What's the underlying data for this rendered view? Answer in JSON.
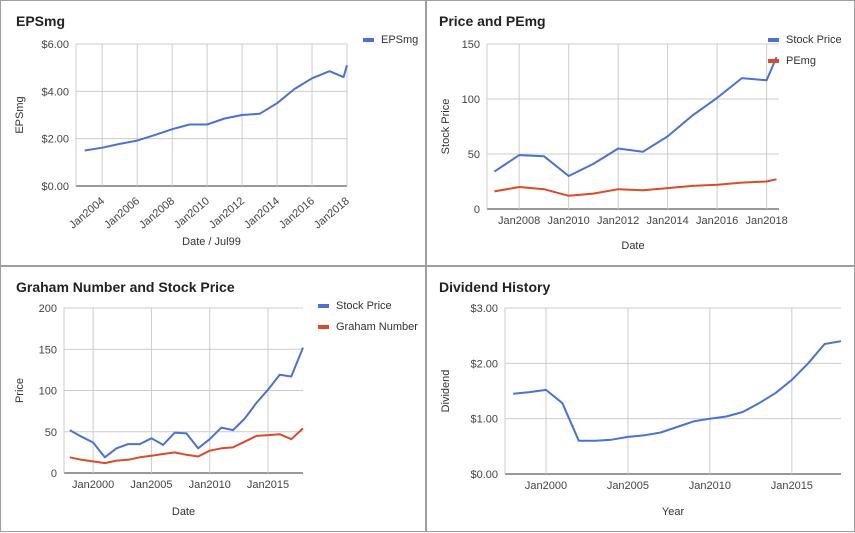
{
  "chart_data": [
    {
      "type": "line",
      "title": "EPSmg",
      "xlabel": "Date / Jul99",
      "ylabel": "EPSmg",
      "ylim": [
        0,
        6
      ],
      "yticks": [
        "$0.00",
        "$2.00",
        "$4.00",
        "$6.00"
      ],
      "ytick_values": [
        0,
        2,
        4,
        6
      ],
      "xlim": [
        2002.5,
        2018
      ],
      "xticks": [
        "Jan2004",
        "Jan2006",
        "Jan2008",
        "Jan2010",
        "Jan2012",
        "Jan2014",
        "Jan2016",
        "Jan2018"
      ],
      "xtick_values": [
        2004,
        2006,
        2008,
        2010,
        2012,
        2014,
        2016,
        2018
      ],
      "grid": true,
      "legend": "top-right",
      "series": [
        {
          "name": "EPSmg",
          "color": "#4a72d5",
          "x": [
            2003,
            2004,
            2005,
            2006,
            2007,
            2008,
            2009,
            2010,
            2011,
            2012,
            2013,
            2014,
            2015,
            2016,
            2017,
            2017.8,
            2018
          ],
          "values": [
            1.5,
            1.62,
            1.78,
            1.92,
            2.15,
            2.4,
            2.6,
            2.6,
            2.85,
            3.0,
            3.05,
            3.5,
            4.1,
            4.55,
            4.85,
            4.6,
            5.1
          ]
        }
      ]
    },
    {
      "type": "line",
      "title": "Price and PEmg",
      "xlabel": "Date",
      "ylabel": "Stock Price",
      "ylim": [
        0,
        150
      ],
      "yticks": [
        "0",
        "50",
        "100",
        "150"
      ],
      "ytick_values": [
        0,
        50,
        100,
        150
      ],
      "xlim": [
        2006.7,
        2018.5
      ],
      "xticks": [
        "Jan2008",
        "Jan2010",
        "Jan2012",
        "Jan2014",
        "Jan2016",
        "Jan2018"
      ],
      "xtick_values": [
        2008,
        2010,
        2012,
        2014,
        2016,
        2018
      ],
      "grid": true,
      "legend": "top-right",
      "series": [
        {
          "name": "Stock Price",
          "color": "#4a72d5",
          "x": [
            2007,
            2008,
            2009,
            2010,
            2011,
            2012,
            2013,
            2014,
            2015,
            2016,
            2017,
            2018,
            2018.4
          ],
          "values": [
            34,
            49,
            48,
            30,
            41,
            55,
            52,
            66,
            85,
            101,
            119,
            117,
            138
          ]
        },
        {
          "name": "PEmg",
          "color": "#dc4a2a",
          "x": [
            2007,
            2008,
            2009,
            2010,
            2011,
            2012,
            2013,
            2014,
            2015,
            2016,
            2017,
            2018,
            2018.4
          ],
          "values": [
            16,
            20,
            18,
            12,
            14,
            18,
            17,
            19,
            21,
            22,
            24,
            25,
            27
          ]
        }
      ]
    },
    {
      "type": "line",
      "title": "Graham Number and Stock Price",
      "xlabel": "Date",
      "ylabel": "Price",
      "ylim": [
        0,
        200
      ],
      "yticks": [
        "0",
        "50",
        "100",
        "150",
        "200"
      ],
      "ytick_values": [
        0,
        50,
        100,
        150,
        200
      ],
      "xlim": [
        1997.5,
        2018
      ],
      "xticks": [
        "Jan2000",
        "Jan2005",
        "Jan2010",
        "Jan2015"
      ],
      "xtick_values": [
        2000,
        2005,
        2010,
        2015
      ],
      "grid": true,
      "legend": "top-right",
      "series": [
        {
          "name": "Stock Price",
          "color": "#4a72d5",
          "x": [
            1998,
            1999,
            2000,
            2001,
            2002,
            2003,
            2004,
            2005,
            2006,
            2007,
            2008,
            2009,
            2010,
            2011,
            2012,
            2013,
            2014,
            2015,
            2016,
            2017,
            2018
          ],
          "values": [
            52,
            44,
            37,
            19,
            30,
            35,
            35,
            42,
            34,
            49,
            48,
            30,
            41,
            55,
            52,
            66,
            85,
            101,
            119,
            117,
            152
          ]
        },
        {
          "name": "Graham Number",
          "color": "#dc4a2a",
          "x": [
            1998,
            1999,
            2000,
            2001,
            2002,
            2003,
            2004,
            2005,
            2006,
            2007,
            2008,
            2009,
            2010,
            2011,
            2012,
            2013,
            2014,
            2015,
            2016,
            2017,
            2018
          ],
          "values": [
            19,
            16,
            14,
            12,
            15,
            16,
            19,
            21,
            23,
            25,
            22,
            20,
            27,
            30,
            31,
            38,
            45,
            46,
            47,
            41,
            54
          ]
        }
      ]
    },
    {
      "type": "line",
      "title": "Dividend History",
      "xlabel": "Year",
      "ylabel": "Dividend",
      "ylim": [
        0,
        3
      ],
      "yticks": [
        "$0.00",
        "$1.00",
        "$2.00",
        "$3.00"
      ],
      "ytick_values": [
        0,
        1,
        2,
        3
      ],
      "xlim": [
        1997.5,
        2018
      ],
      "xticks": [
        "Jan2000",
        "Jan2005",
        "Jan2010",
        "Jan2015"
      ],
      "xtick_values": [
        2000,
        2005,
        2010,
        2015
      ],
      "grid": true,
      "legend": "none",
      "series": [
        {
          "name": "",
          "color": "#4a72d5",
          "x": [
            1998,
            1999,
            2000,
            2001,
            2002,
            2003,
            2004,
            2005,
            2006,
            2007,
            2008,
            2009,
            2010,
            2011,
            2012,
            2013,
            2014,
            2015,
            2016,
            2017,
            2018
          ],
          "values": [
            1.45,
            1.48,
            1.52,
            1.28,
            0.6,
            0.6,
            0.62,
            0.67,
            0.7,
            0.75,
            0.85,
            0.95,
            1.0,
            1.04,
            1.12,
            1.28,
            1.46,
            1.7,
            2.0,
            2.35,
            2.4
          ]
        }
      ]
    }
  ]
}
